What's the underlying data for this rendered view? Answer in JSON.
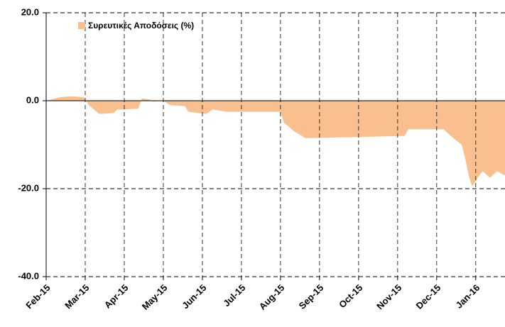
{
  "chart_data": {
    "type": "area",
    "x": [
      0,
      0.36,
      0.64,
      0.96,
      1.09,
      1.36,
      1.73,
      1.82,
      2,
      2.36,
      2.45,
      2.64,
      2.73,
      3,
      3.18,
      3.55,
      3.64,
      4.09,
      4.27,
      4.64,
      6,
      6.09,
      6.36,
      6.64,
      9.18,
      9.27,
      10.18,
      10.36,
      10.64,
      10.73,
      10.82,
      10.91,
      11.09,
      11.18,
      11.36,
      11.55,
      11.75
    ],
    "series": [
      {
        "name": "Συρευτικές Αποδόσεις (%)",
        "color": "#f9bf8f",
        "values": [
          0,
          0.8,
          1,
          0.8,
          -1,
          -3,
          -2.8,
          -2,
          -2,
          -1.8,
          0.5,
          0.3,
          -0.2,
          0,
          -1,
          -1.2,
          -2.5,
          -3,
          -2,
          -2.5,
          -2.5,
          -5,
          -7,
          -8.5,
          -8,
          -6.5,
          -6.5,
          -8,
          -10,
          -13,
          -17,
          -19.5,
          -17,
          -16,
          -17.5,
          -16,
          -17
        ]
      }
    ],
    "xlim": [
      0,
      11.75
    ],
    "xticks": [
      {
        "value": 0,
        "label": "Feb-15"
      },
      {
        "value": 1,
        "label": "Mar-15"
      },
      {
        "value": 2,
        "label": "Apr-15"
      },
      {
        "value": 3,
        "label": "May-15"
      },
      {
        "value": 4,
        "label": "Jun-15"
      },
      {
        "value": 5,
        "label": "Jul-15"
      },
      {
        "value": 6,
        "label": "Aug-15"
      },
      {
        "value": 7,
        "label": "Sep-15"
      },
      {
        "value": 8,
        "label": "Oct-15"
      },
      {
        "value": 9,
        "label": "Nov-15"
      },
      {
        "value": 10,
        "label": "Dec-15"
      },
      {
        "value": 11,
        "label": "Jan-16"
      }
    ],
    "ylim": [
      -40,
      20
    ],
    "yticks": [
      {
        "value": -40,
        "label": "-40.0"
      },
      {
        "value": -20,
        "label": "-20.0"
      },
      {
        "value": 0,
        "label": "0.0"
      },
      {
        "value": 20,
        "label": "20.0"
      }
    ],
    "grid": true,
    "legend": "top-left"
  }
}
